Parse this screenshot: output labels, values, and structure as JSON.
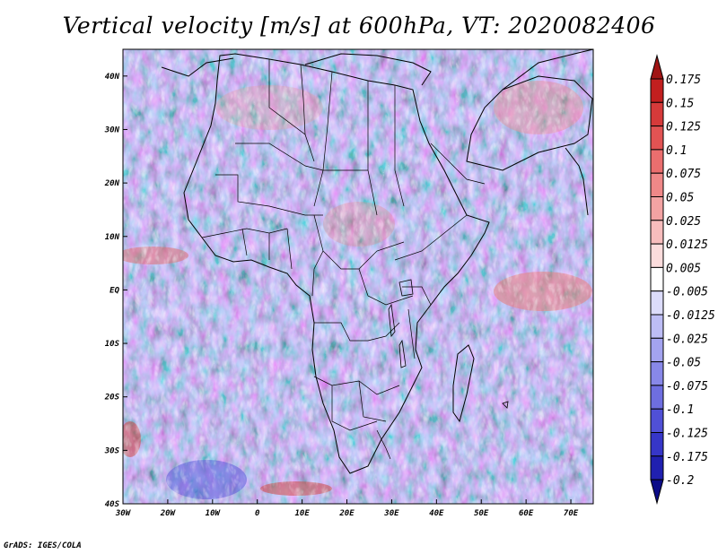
{
  "title": "Vertical velocity [m/s] at 600hPa, VT: 2020082406",
  "footer": "GrADS: IGES/COLA",
  "map": {
    "lon_labels": [
      "30W",
      "20W",
      "10W",
      "0",
      "10E",
      "20E",
      "30E",
      "40E",
      "50E",
      "60E",
      "70E"
    ],
    "lat_labels": [
      "40N",
      "30N",
      "20N",
      "10N",
      "EQ",
      "10S",
      "20S",
      "30S",
      "40S"
    ],
    "lon_range": [
      -30,
      75
    ],
    "lat_range": [
      -40,
      45
    ]
  },
  "colorbar": {
    "labels": [
      "0.175",
      "0.15",
      "0.125",
      "0.1",
      "0.075",
      "0.05",
      "0.025",
      "0.0125",
      "0.005",
      "-0.005",
      "-0.0125",
      "-0.025",
      "-0.05",
      "-0.075",
      "-0.1",
      "-0.125",
      "-0.175",
      "-0.2"
    ],
    "colors": [
      "#a01414",
      "#c21f1f",
      "#d63a3a",
      "#e25353",
      "#ea6e6e",
      "#ef8888",
      "#f3a3a3",
      "#f7bdbd",
      "#fbdcdc",
      "#ffffff",
      "#dcdcfb",
      "#bdbdf5",
      "#a3a3ef",
      "#8888e8",
      "#6e6ee0",
      "#5050d6",
      "#3636c8",
      "#2020b0",
      "#0c0c88"
    ]
  }
}
